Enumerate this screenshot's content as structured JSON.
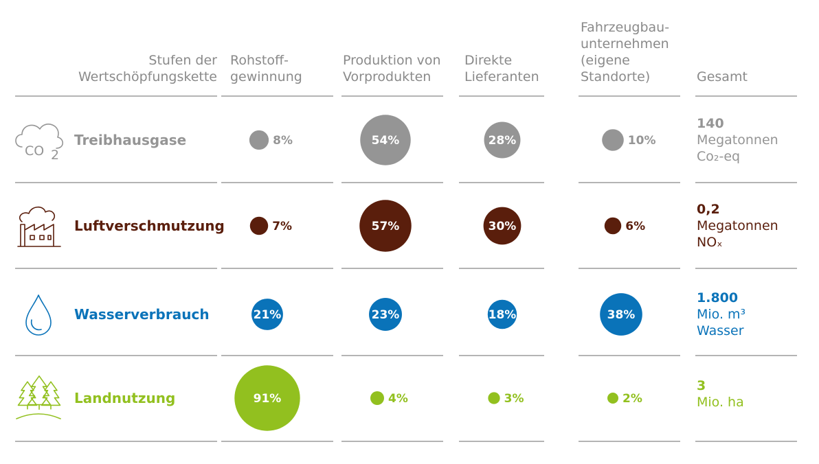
{
  "chart_data": {
    "type": "bubble-table",
    "title": "",
    "columns": [
      "Rohstoff-gewinnung",
      "Produktion von Vorprodukten",
      "Direkte Lieferanten",
      "Fahrzeugbau-unternehmen (eigene Standorte)"
    ],
    "header": {
      "stage_label": [
        "Stufen der",
        "Wertschöpfungskette"
      ],
      "columns": [
        [
          "Rohstoff-",
          "gewinnung"
        ],
        [
          "Produktion von",
          "Vorprodukten"
        ],
        [
          "Direkte",
          "Lieferanten"
        ],
        [
          "Fahrzeugbau-",
          "unternehmen",
          "(eigene",
          "Standorte)"
        ]
      ],
      "total": "Gesamt"
    },
    "series": [
      {
        "name": "Treibhausgase",
        "icon": "co2-cloud-icon",
        "color": "#959595",
        "values": [
          8,
          54,
          28,
          10
        ],
        "total": {
          "value": "140",
          "unit": [
            "Megatonnen",
            "Co₂-eq"
          ]
        }
      },
      {
        "name": "Luftverschmutzung",
        "icon": "factory-icon",
        "color": "#5a1e0c",
        "values": [
          7,
          57,
          30,
          6
        ],
        "total": {
          "value": "0,2",
          "unit": [
            "Megatonnen",
            "NOₓ"
          ]
        }
      },
      {
        "name": "Wasserverbrauch",
        "icon": "water-drop-icon",
        "color": "#0a73b9",
        "values": [
          21,
          23,
          18,
          38
        ],
        "total": {
          "value": "1.800",
          "unit": [
            "Mio. m³",
            "Wasser"
          ]
        }
      },
      {
        "name": "Landnutzung",
        "icon": "trees-icon",
        "color": "#92c01f",
        "values": [
          91,
          4,
          3,
          2
        ],
        "total": {
          "value": "3",
          "unit": [
            "Mio. ha"
          ]
        }
      }
    ],
    "percent_suffix": "%"
  },
  "colors": {
    "rule": "#9b9b9b",
    "header_text": "#8a8a8a"
  }
}
